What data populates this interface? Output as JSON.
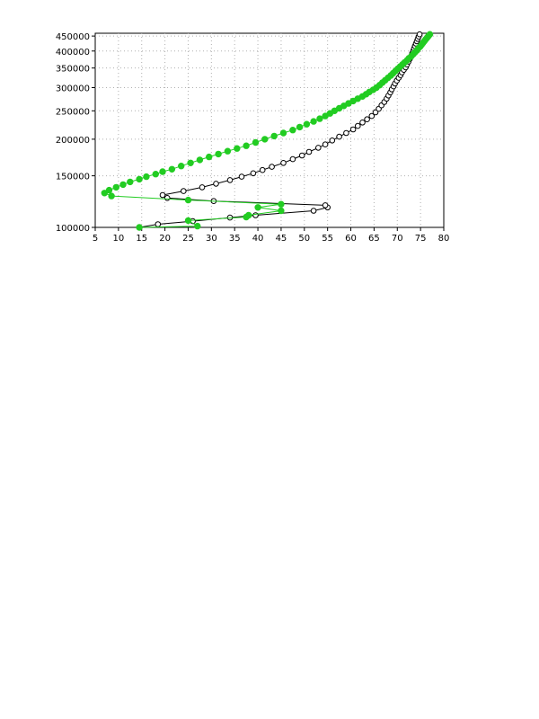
{
  "chart_data": {
    "type": "scatter",
    "title": "",
    "xlabel": "",
    "ylabel": "",
    "xlim": [
      5,
      80
    ],
    "ylim": [
      100000,
      460000
    ],
    "y_scale": "log",
    "grid": true,
    "x_ticks": [
      "5",
      "10",
      "15",
      "20",
      "25",
      "30",
      "35",
      "40",
      "45",
      "50",
      "55",
      "60",
      "65",
      "70",
      "75",
      "80"
    ],
    "y_ticks": [
      "100000",
      "150000",
      "200000",
      "250000",
      "300000",
      "350000",
      "400000",
      "450000"
    ],
    "series": [
      {
        "color": "#000000",
        "marker": "open-circle",
        "points": [
          [
            14.5,
            100000
          ],
          [
            18.5,
            102500
          ],
          [
            26,
            105000
          ],
          [
            34,
            108000
          ],
          [
            39.5,
            110000
          ],
          [
            52,
            114000
          ],
          [
            55,
            117000
          ],
          [
            54.5,
            119000
          ],
          [
            30.5,
            123000
          ],
          [
            20.5,
            126000
          ],
          [
            19.5,
            129000
          ],
          [
            24,
            133000
          ],
          [
            28,
            137000
          ],
          [
            31,
            141000
          ],
          [
            34,
            145000
          ],
          [
            36.5,
            149000
          ],
          [
            39,
            153000
          ],
          [
            41,
            157000
          ],
          [
            43,
            161000
          ],
          [
            45.5,
            166000
          ],
          [
            47.5,
            171000
          ],
          [
            49.5,
            176000
          ],
          [
            51,
            181000
          ],
          [
            53,
            187000
          ],
          [
            54.5,
            192000
          ],
          [
            56,
            198000
          ],
          [
            57.5,
            204000
          ],
          [
            59,
            210000
          ],
          [
            60.5,
            216000
          ],
          [
            61.5,
            222000
          ],
          [
            62.5,
            228000
          ],
          [
            63.5,
            234000
          ],
          [
            64.5,
            240000
          ],
          [
            65.3,
            247000
          ],
          [
            66,
            254000
          ],
          [
            66.6,
            261000
          ],
          [
            67.2,
            268000
          ],
          [
            67.7,
            275000
          ],
          [
            68.1,
            282000
          ],
          [
            68.5,
            289000
          ],
          [
            68.8,
            296000
          ],
          [
            69.2,
            303000
          ],
          [
            69.5,
            310000
          ],
          [
            69.9,
            317000
          ],
          [
            70.3,
            324000
          ],
          [
            70.7,
            331000
          ],
          [
            71,
            338000
          ],
          [
            71.4,
            345000
          ],
          [
            71.8,
            352000
          ],
          [
            72.1,
            360000
          ],
          [
            72.4,
            368000
          ],
          [
            72.7,
            376000
          ],
          [
            73,
            384000
          ],
          [
            73.2,
            392000
          ],
          [
            73.4,
            400000
          ],
          [
            73.6,
            408000
          ],
          [
            73.8,
            416000
          ],
          [
            74,
            424000
          ],
          [
            74.2,
            432000
          ],
          [
            74.4,
            440000
          ],
          [
            74.6,
            448000
          ],
          [
            74.8,
            456000
          ]
        ]
      },
      {
        "color": "#22cc22",
        "marker": "filled-circle",
        "points": [
          [
            14.5,
            100000
          ],
          [
            27,
            101000
          ],
          [
            25,
            105500
          ],
          [
            37.5,
            108500
          ],
          [
            38,
            110000
          ],
          [
            45,
            114000
          ],
          [
            40,
            117000
          ],
          [
            45,
            120000
          ],
          [
            25,
            124000
          ],
          [
            8.5,
            128000
          ],
          [
            7,
            131000
          ],
          [
            8,
            134000
          ],
          [
            9.5,
            137000
          ],
          [
            11,
            140000
          ],
          [
            12.5,
            143000
          ],
          [
            14.5,
            146000
          ],
          [
            16,
            149000
          ],
          [
            18,
            152000
          ],
          [
            19.5,
            155000
          ],
          [
            21.5,
            158000
          ],
          [
            23.5,
            162000
          ],
          [
            25.5,
            166000
          ],
          [
            27.5,
            170000
          ],
          [
            29.5,
            174000
          ],
          [
            31.5,
            178000
          ],
          [
            33.5,
            182000
          ],
          [
            35.5,
            186000
          ],
          [
            37.5,
            190000
          ],
          [
            39.5,
            195000
          ],
          [
            41.5,
            200000
          ],
          [
            43.5,
            205000
          ],
          [
            45.5,
            210000
          ],
          [
            47.5,
            215000
          ],
          [
            49,
            220000
          ],
          [
            50.5,
            225000
          ],
          [
            52,
            230000
          ],
          [
            53.3,
            235000
          ],
          [
            54.5,
            240000
          ],
          [
            55.5,
            245000
          ],
          [
            56.5,
            250000
          ],
          [
            57.5,
            255000
          ],
          [
            58.5,
            260000
          ],
          [
            59.5,
            265000
          ],
          [
            60.5,
            270000
          ],
          [
            61.5,
            275000
          ],
          [
            62.5,
            280000
          ],
          [
            63.3,
            285000
          ],
          [
            64,
            290000
          ],
          [
            64.8,
            295000
          ],
          [
            65.5,
            300000
          ],
          [
            66.2,
            306000
          ],
          [
            66.8,
            312000
          ],
          [
            67.4,
            318000
          ],
          [
            68,
            324000
          ],
          [
            68.6,
            330000
          ],
          [
            69.1,
            336000
          ],
          [
            69.6,
            342000
          ],
          [
            70.1,
            348000
          ],
          [
            70.6,
            354000
          ],
          [
            71.1,
            360000
          ],
          [
            71.6,
            366000
          ],
          [
            72.1,
            372000
          ],
          [
            72.5,
            378000
          ],
          [
            73,
            384000
          ],
          [
            73.4,
            390000
          ],
          [
            73.8,
            396000
          ],
          [
            74.2,
            402000
          ],
          [
            74.5,
            408000
          ],
          [
            74.9,
            414000
          ],
          [
            75.2,
            420000
          ],
          [
            75.5,
            426000
          ],
          [
            75.8,
            432000
          ],
          [
            76.1,
            438000
          ],
          [
            76.4,
            444000
          ],
          [
            76.7,
            450000
          ],
          [
            77,
            456000
          ]
        ]
      }
    ]
  }
}
